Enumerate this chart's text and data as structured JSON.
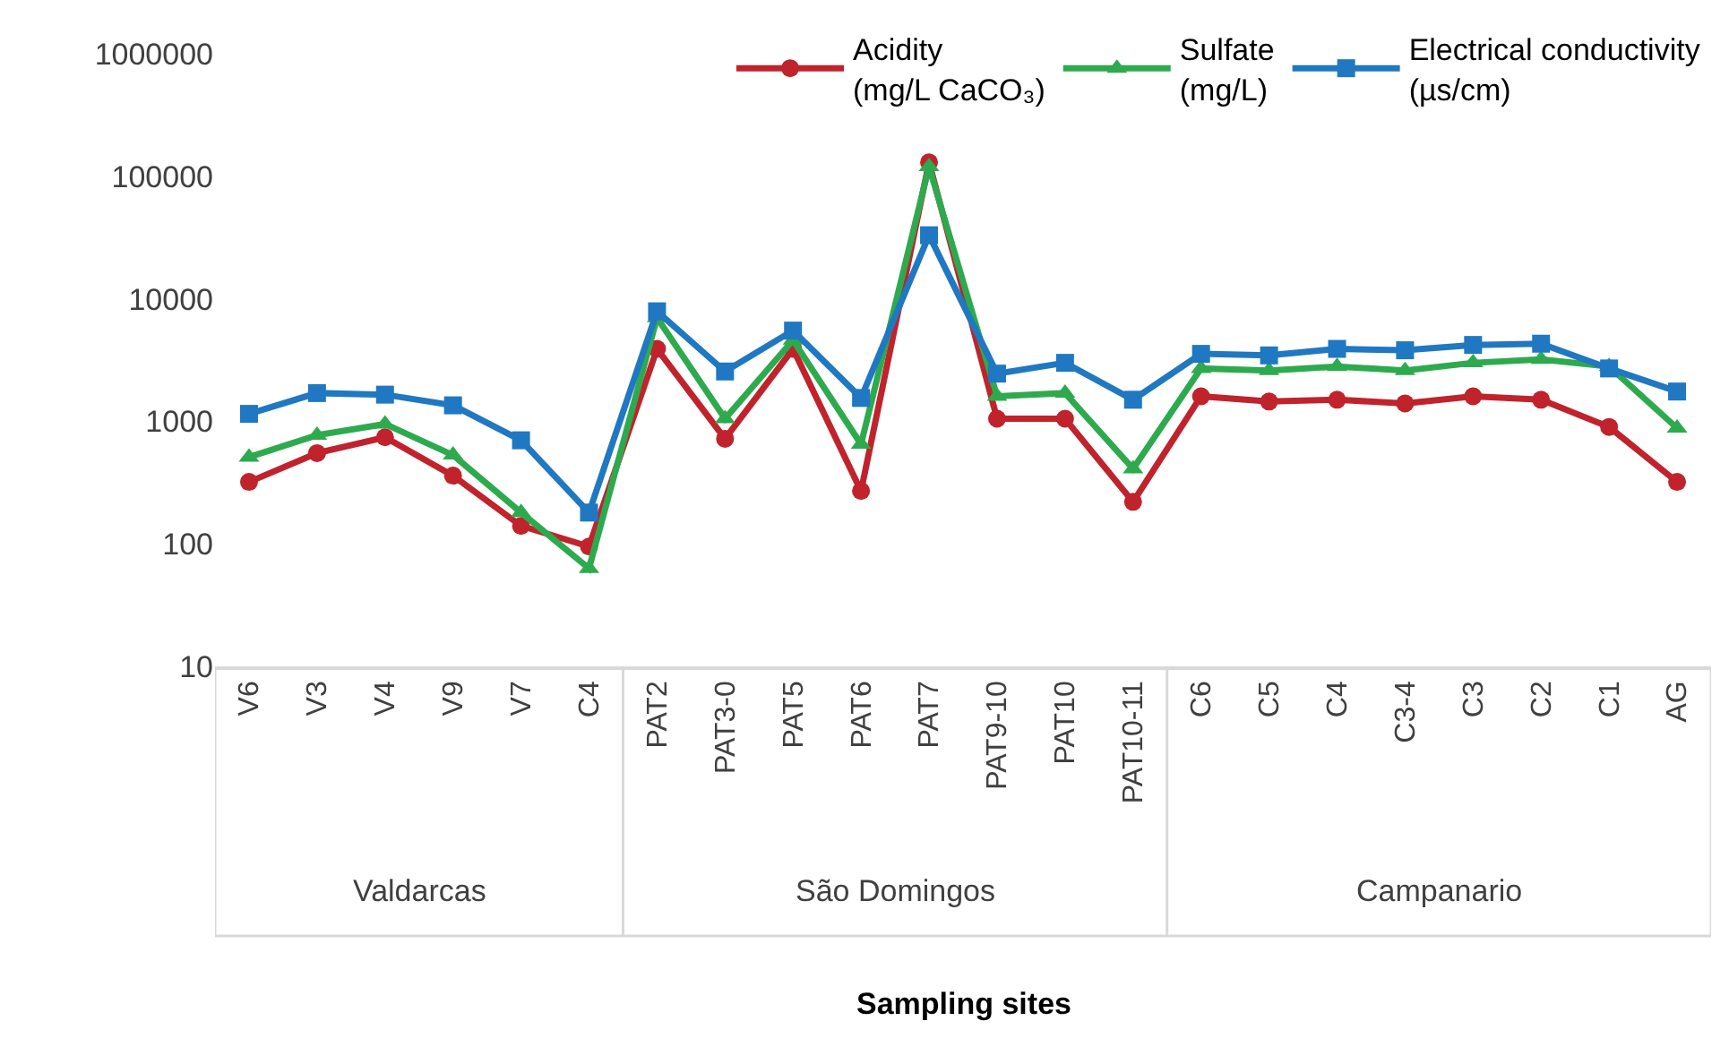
{
  "chart_data": {
    "type": "line",
    "categories": [
      "V6",
      "V3",
      "V4",
      "V9",
      "V7",
      "C4",
      "PAT2",
      "PAT3-0",
      "PAT5",
      "PAT6",
      "PAT7",
      "PAT9-10",
      "PAT10",
      "PAT10-11",
      "C6",
      "C5",
      "C4",
      "C3-4",
      "C3",
      "C2",
      "C1",
      "AG"
    ],
    "series": [
      {
        "name": "Acidity\n(mg/L CaCO₃)",
        "color": "#c0232c",
        "marker": "circle",
        "values": [
          320,
          550,
          740,
          360,
          140,
          95,
          3900,
          720,
          3900,
          270,
          130000,
          1050,
          1050,
          220,
          1600,
          1450,
          1500,
          1400,
          1600,
          1500,
          900,
          320
        ]
      },
      {
        "name": "Sulfate\n(mg/L)",
        "color": "#2eaa4e",
        "marker": "triangle",
        "values": [
          510,
          770,
          950,
          530,
          180,
          63,
          7000,
          1050,
          4600,
          650,
          120000,
          1600,
          1700,
          410,
          2700,
          2600,
          2800,
          2600,
          3000,
          3200,
          2800,
          880
        ]
      },
      {
        "name": "Electrical conductivity\n(µs/cm)",
        "color": "#1f78c1",
        "marker": "square",
        "values": [
          1150,
          1700,
          1650,
          1350,
          700,
          180,
          7900,
          2550,
          5500,
          1550,
          33000,
          2450,
          3000,
          1500,
          3550,
          3450,
          3900,
          3800,
          4200,
          4300,
          2700,
          1750
        ]
      }
    ],
    "annotations": [
      "Valdarcas",
      "São Domingos",
      "Campanario",
      "Sampling sites"
    ],
    "log": "y",
    "ylim": [
      10,
      1000000
    ],
    "yticks": [
      10,
      100,
      1000,
      10000,
      100000,
      1000000
    ],
    "grid": false,
    "legend": "top right",
    "line_style": "solid"
  }
}
